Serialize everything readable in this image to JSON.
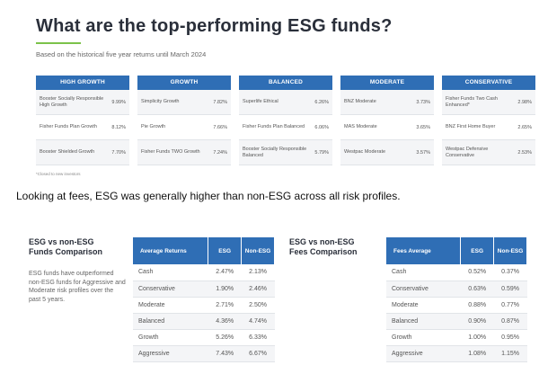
{
  "header": {
    "title": "What are the top-performing ESG funds?",
    "subtitle": "Based on the historical five year returns until March 2024"
  },
  "fund_columns": [
    {
      "name": "HIGH GROWTH",
      "rows": [
        {
          "fund": "Booster Socially Responsible High Growth",
          "value": "9.99%"
        },
        {
          "fund": "Fisher Funds Plan Growth",
          "value": "8.12%"
        },
        {
          "fund": "Booster Shielded Growth",
          "value": "7.70%"
        }
      ]
    },
    {
      "name": "GROWTH",
      "rows": [
        {
          "fund": "Simplicity Growth",
          "value": "7.82%"
        },
        {
          "fund": "Pie Growth",
          "value": "7.66%"
        },
        {
          "fund": "Fisher Funds TWO Growth",
          "value": "7.24%"
        }
      ]
    },
    {
      "name": "BALANCED",
      "rows": [
        {
          "fund": "Superlife Ethical",
          "value": "6.26%"
        },
        {
          "fund": "Fisher Funds Plan Balanced",
          "value": "6.06%"
        },
        {
          "fund": "Booster Socially Responsible Balanced",
          "value": "5.79%"
        }
      ]
    },
    {
      "name": "MODERATE",
      "rows": [
        {
          "fund": "BNZ Moderate",
          "value": "3.73%"
        },
        {
          "fund": "MAS Moderate",
          "value": "3.65%"
        },
        {
          "fund": "Westpac Moderate",
          "value": "3.57%"
        }
      ]
    },
    {
      "name": "CONSERVATIVE",
      "rows": [
        {
          "fund": "Fisher Funds Two Cash Enhanced*",
          "value": "2.98%"
        },
        {
          "fund": "BNZ First Home Buyer",
          "value": "2.65%"
        },
        {
          "fund": "Westpac Defensive Conservative",
          "value": "2.53%"
        }
      ]
    }
  ],
  "footnote": "*Closed to new investors",
  "sentence": "Looking at fees, ESG was generally higher than non-ESG across all risk profiles.",
  "returns_section": {
    "title_line1": "ESG vs non-ESG",
    "title_line2": "Funds Comparison",
    "body": "ESG funds have outperformed non-ESG funds for Aggressive and Moderate risk profiles over the past 5 years.",
    "headers": [
      "Average Returns",
      "ESG",
      "Non-ESG"
    ],
    "rows": [
      [
        "Cash",
        "2.47%",
        "2.13%"
      ],
      [
        "Conservative",
        "1.90%",
        "2.46%"
      ],
      [
        "Moderate",
        "2.71%",
        "2.50%"
      ],
      [
        "Balanced",
        "4.36%",
        "4.74%"
      ],
      [
        "Growth",
        "5.26%",
        "6.33%"
      ],
      [
        "Aggressive",
        "7.43%",
        "6.67%"
      ]
    ]
  },
  "fees_section": {
    "title_line1": "ESG vs non-ESG",
    "title_line2": "Fees Comparison",
    "headers": [
      "Fees Average",
      "ESG",
      "Non-ESG"
    ],
    "rows": [
      [
        "Cash",
        "0.52%",
        "0.37%"
      ],
      [
        "Conservative",
        "0.63%",
        "0.59%"
      ],
      [
        "Moderate",
        "0.88%",
        "0.77%"
      ],
      [
        "Balanced",
        "0.90%",
        "0.87%"
      ],
      [
        "Growth",
        "1.00%",
        "0.95%"
      ],
      [
        "Aggressive",
        "1.08%",
        "1.15%"
      ]
    ]
  },
  "colors": {
    "accent_blue": "#2f6eb5",
    "accent_green": "#7cc24a"
  }
}
